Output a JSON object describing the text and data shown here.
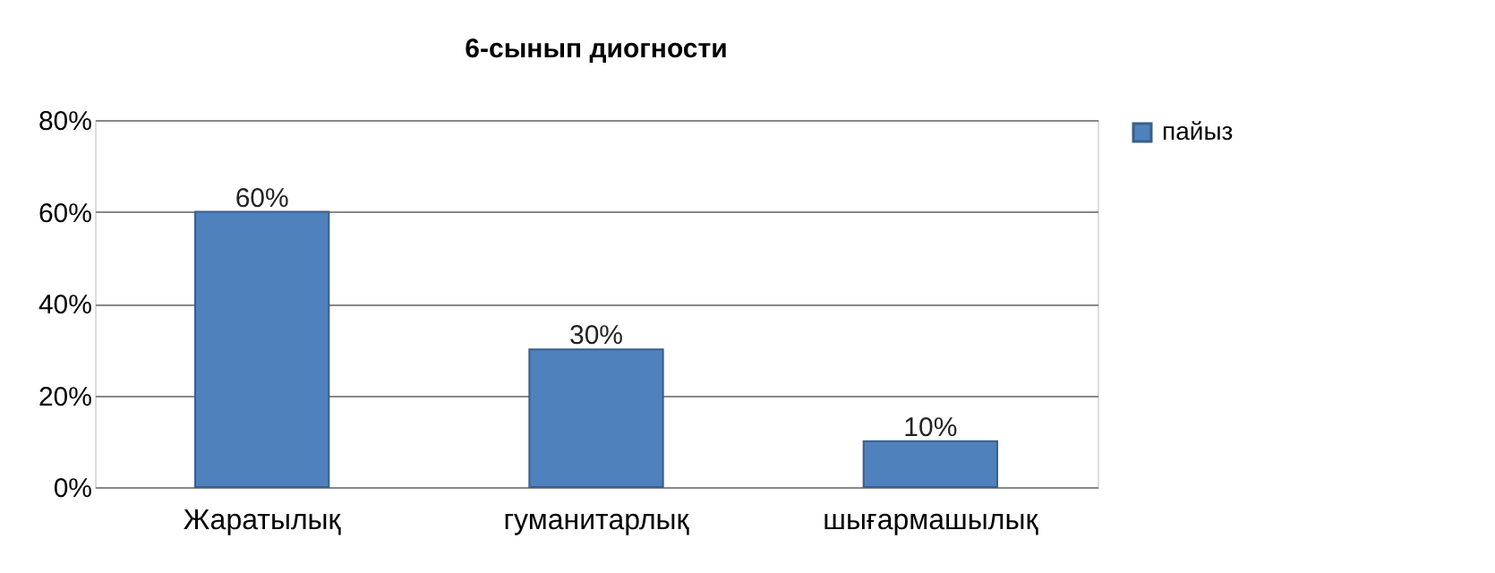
{
  "chart_data": {
    "type": "bar",
    "title": "6-сынып диогности",
    "categories": [
      "Жаратылық",
      "гуманитарлық",
      "шығармашылық"
    ],
    "series": [
      {
        "name": "пайыз",
        "color": "#4f81bd",
        "values": [
          60,
          30,
          10
        ],
        "value_labels": [
          "60%",
          "30%",
          "10%"
        ]
      }
    ],
    "ylim": [
      0,
      80
    ],
    "yticks": [
      {
        "value": 0,
        "label": "0%"
      },
      {
        "value": 20,
        "label": "20%"
      },
      {
        "value": 40,
        "label": "40%"
      },
      {
        "value": 60,
        "label": "60%"
      },
      {
        "value": 80,
        "label": "80%"
      }
    ],
    "grid": "y",
    "legend": "right"
  }
}
